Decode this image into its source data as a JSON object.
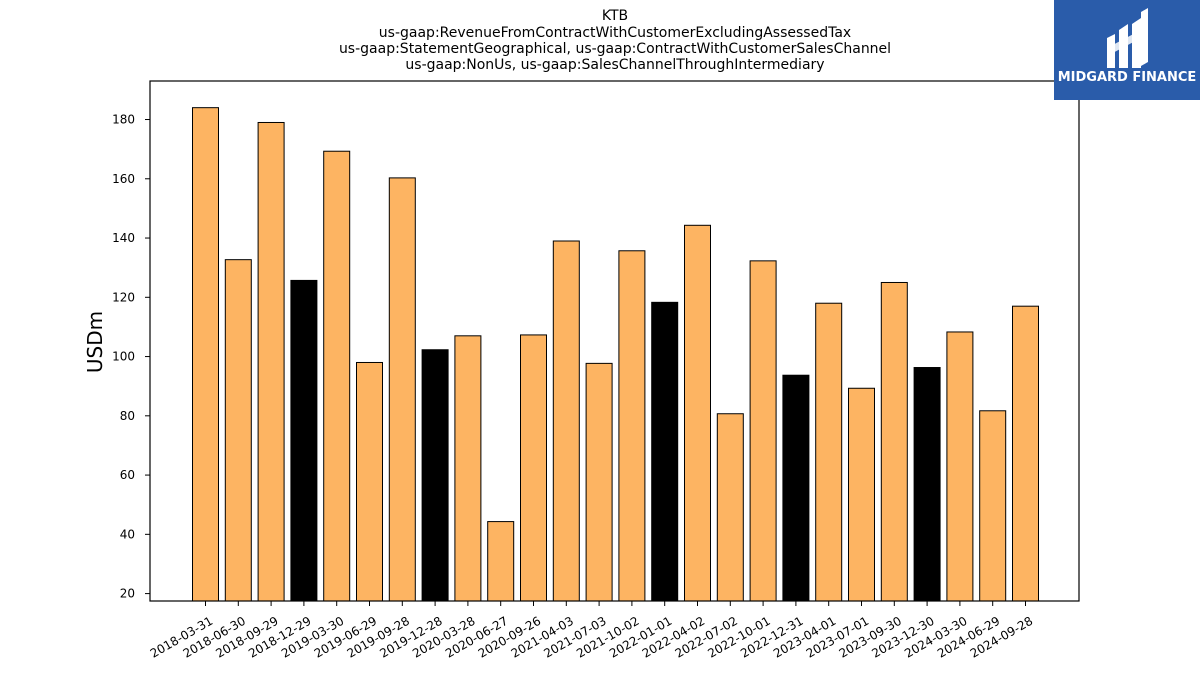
{
  "chart_data": {
    "type": "bar",
    "title_lines": [
      "KTB",
      "us-gaap:RevenueFromContractWithCustomerExcludingAssessedTax",
      "us-gaap:StatementGeographical, us-gaap:ContractWithCustomerSalesChannel",
      "us-gaap:NonUs, us-gaap:SalesChannelThroughIntermediary"
    ],
    "ylabel": "USDm",
    "xlabel": "",
    "ylim": [
      17.5,
      193
    ],
    "yticks": [
      20,
      40,
      60,
      80,
      100,
      120,
      140,
      160,
      180
    ],
    "categories": [
      "2018-03-31",
      "2018-06-30",
      "2018-09-29",
      "2018-12-29",
      "2019-03-30",
      "2019-06-29",
      "2019-09-28",
      "2019-12-28",
      "2020-03-28",
      "2020-06-27",
      "2020-09-26",
      "2021-04-03",
      "2021-07-03",
      "2021-10-02",
      "2022-01-01",
      "2022-04-02",
      "2022-07-02",
      "2022-10-01",
      "2022-12-31",
      "2023-04-01",
      "2023-07-01",
      "2023-09-30",
      "2023-12-30",
      "2024-03-30",
      "2024-06-29",
      "2024-09-28"
    ],
    "values": [
      184,
      132.7,
      179,
      125.7,
      169.3,
      98,
      160.3,
      102.3,
      107,
      44.3,
      107.3,
      139,
      97.7,
      135.7,
      118.3,
      144.3,
      80.7,
      132.3,
      93.7,
      118,
      89.3,
      125,
      96.3,
      108.3,
      81.7,
      117
    ],
    "highlight_quarter_end_dec": [
      false,
      false,
      false,
      true,
      false,
      false,
      false,
      true,
      false,
      false,
      false,
      false,
      false,
      false,
      true,
      false,
      false,
      false,
      true,
      false,
      false,
      false,
      true,
      false,
      false,
      false
    ],
    "colors": {
      "bar": "#fdb462",
      "highlight": "#000000",
      "edge": "#000000"
    }
  },
  "logo": {
    "text": "MIDGARD FINANCE",
    "background": "#2a5caa"
  }
}
